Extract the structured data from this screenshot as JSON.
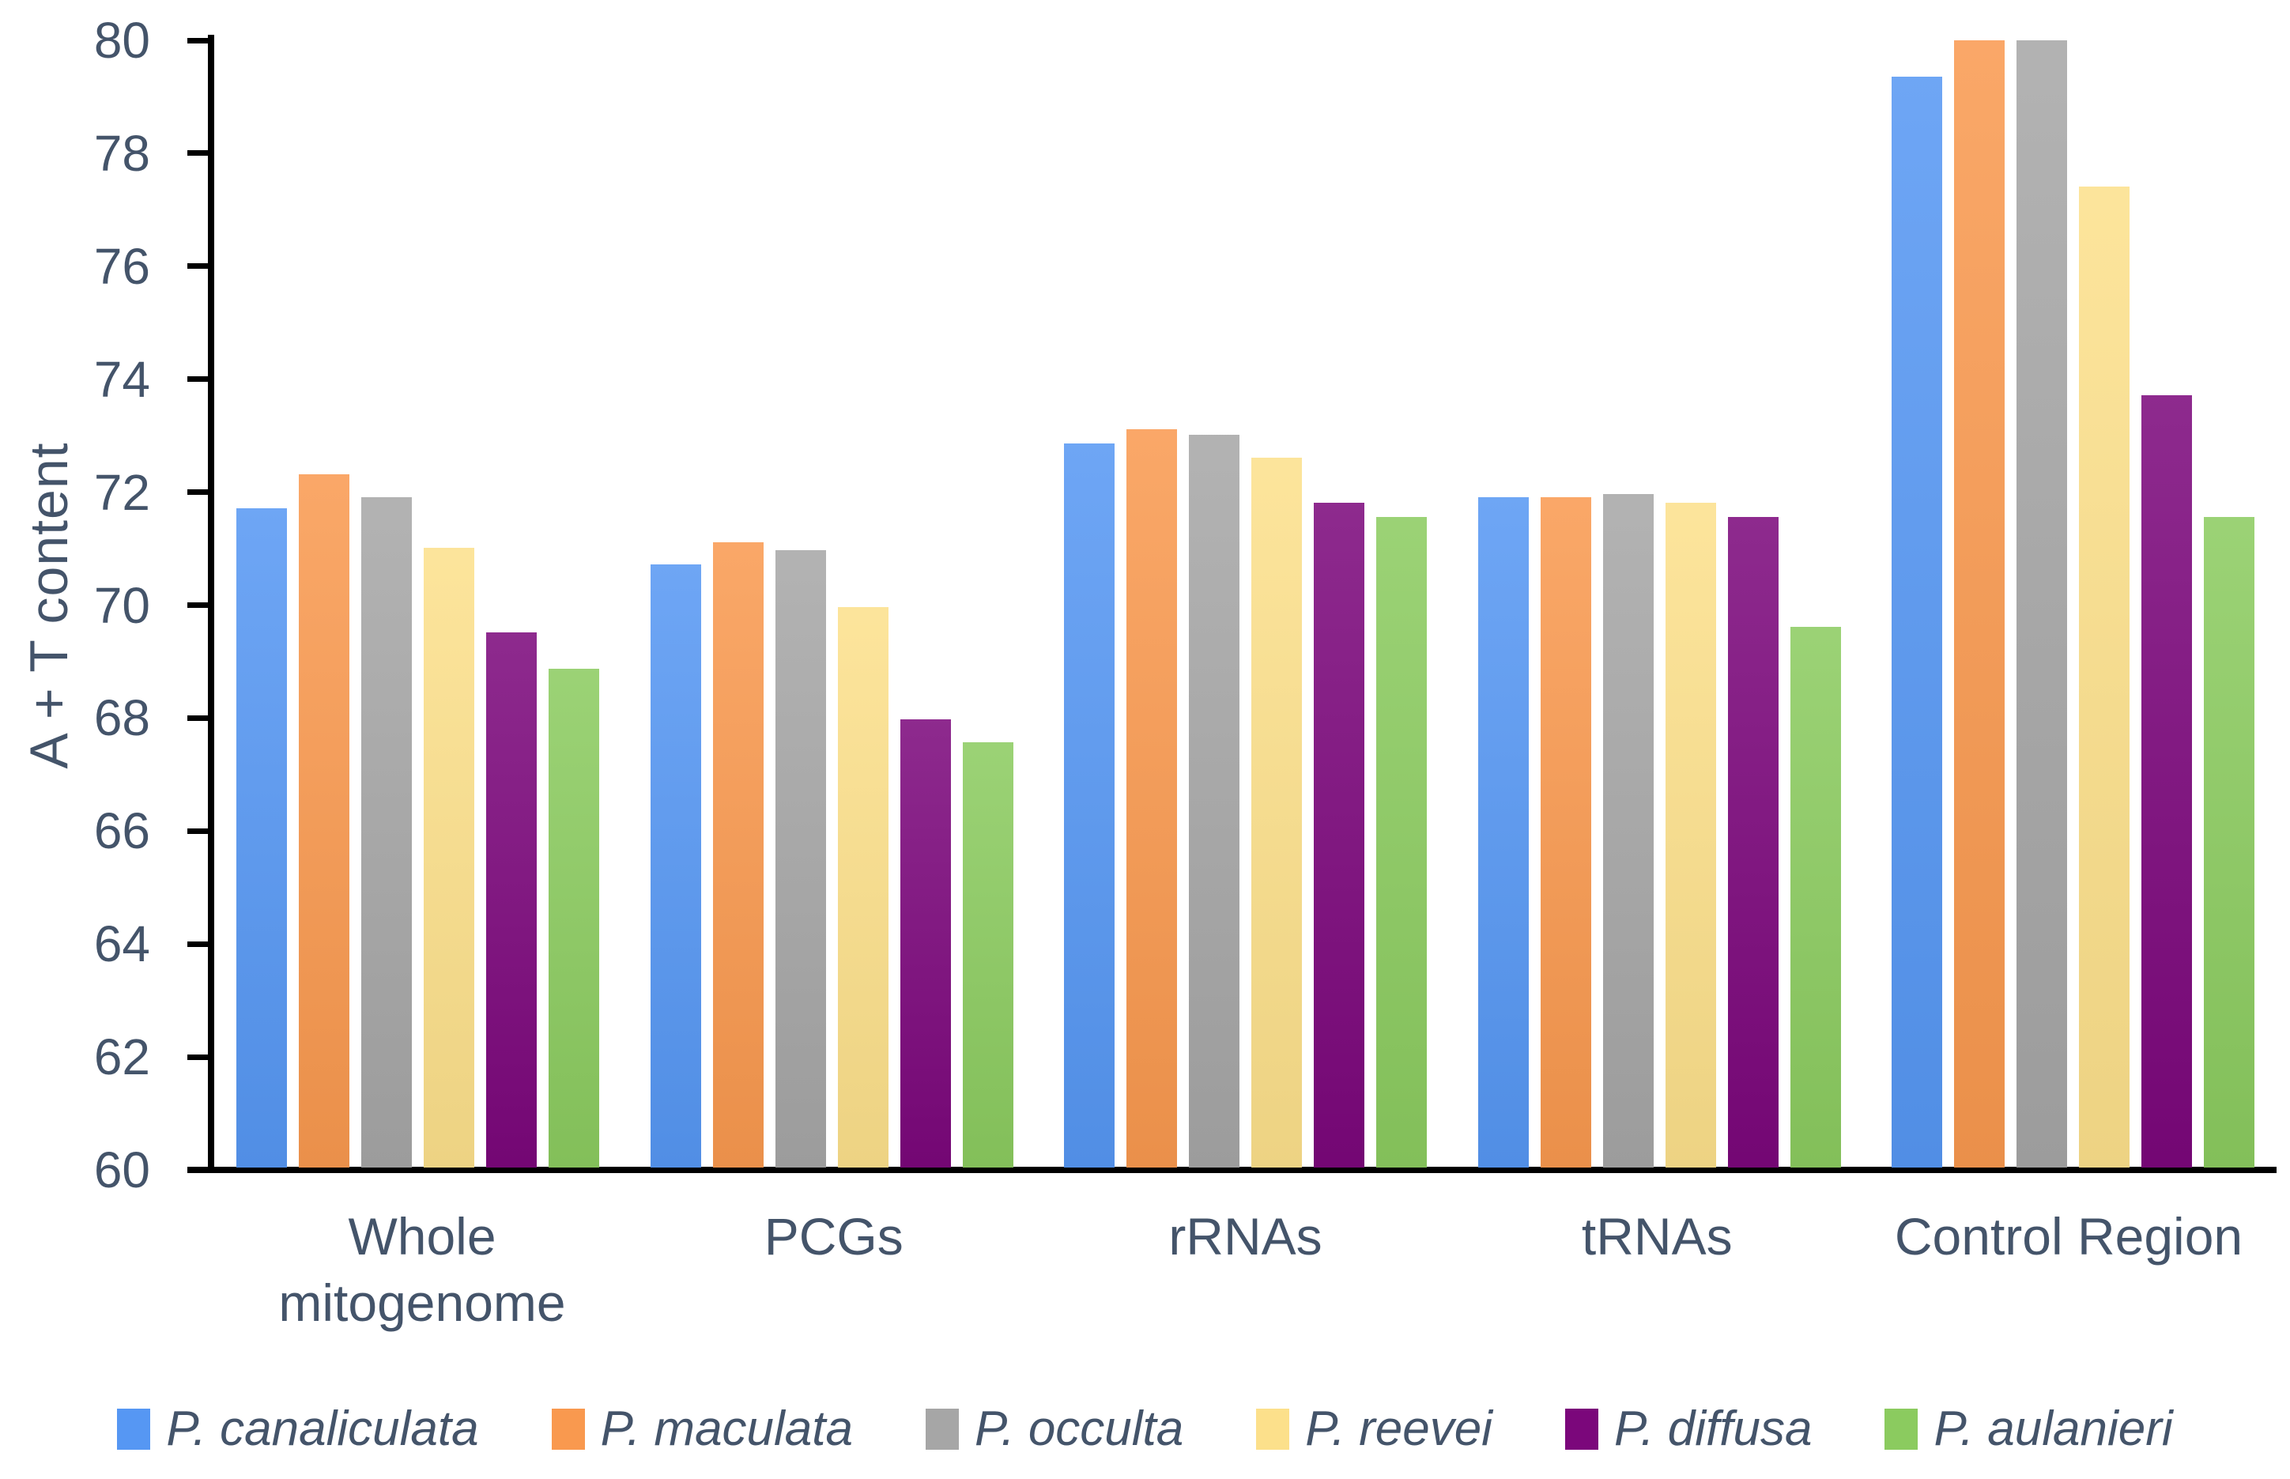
{
  "chart": {
    "y_axis_title": "A + T content"
  },
  "chart_data": {
    "type": "bar",
    "title": "",
    "xlabel": "",
    "ylabel": "A + T content",
    "ylim": [
      60,
      80
    ],
    "ytick_step": 2,
    "grid": false,
    "legend_position": "bottom",
    "categories": [
      "Whole mitogenome",
      "PCGs",
      "rRNAs",
      "tRNAs",
      "Control Region"
    ],
    "series": [
      {
        "name": "P. canaliculata",
        "color": "#5697F3",
        "values": [
          71.7,
          70.7,
          72.85,
          71.9,
          79.35
        ]
      },
      {
        "name": "P. maculata",
        "color": "#F9994F",
        "values": [
          72.3,
          71.1,
          73.1,
          71.9,
          80.0
        ]
      },
      {
        "name": "P. occulta",
        "color": "#A6A6A6",
        "values": [
          71.9,
          70.95,
          73.0,
          71.95,
          80.0
        ]
      },
      {
        "name": "P. reevei",
        "color": "#FCE08B",
        "values": [
          71.0,
          69.95,
          72.6,
          71.8,
          77.4
        ]
      },
      {
        "name": "P. diffusa",
        "color": "#7B077B",
        "values": [
          69.5,
          67.95,
          71.8,
          71.55,
          73.7
        ]
      },
      {
        "name": "P. aulanieri",
        "color": "#8BCB5F",
        "values": [
          68.85,
          67.55,
          71.55,
          69.6,
          71.55
        ]
      }
    ]
  }
}
